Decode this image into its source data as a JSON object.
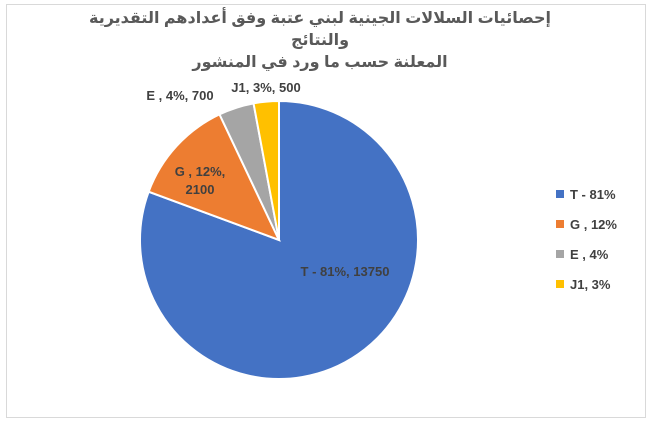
{
  "chart_data": {
    "type": "pie",
    "title_line1": "إحصائيات السلالات الجينية لبني عتبة وفق أعدادهم التقديرية والنتائج",
    "title_line2": "المعلنة حسب ما ورد في المنشور",
    "slices": [
      {
        "name": "T",
        "value": 13750,
        "percent": 81,
        "color": "#4472C4",
        "label": "T - 81%, 13750",
        "legend": "T - 81%"
      },
      {
        "name": "G",
        "value": 2100,
        "percent": 12,
        "color": "#ED7D31",
        "label": "G , 12%, 2100",
        "legend": "G , 12%"
      },
      {
        "name": "E",
        "value": 700,
        "percent": 4,
        "color": "#A5A5A5",
        "label": "E , 4%, 700",
        "legend": "E , 4%"
      },
      {
        "name": "J1",
        "value": 500,
        "percent": 3,
        "color": "#FFC000",
        "label": "J1, 3%, 500",
        "legend": "J1, 3%"
      }
    ],
    "legend_position": "right"
  }
}
